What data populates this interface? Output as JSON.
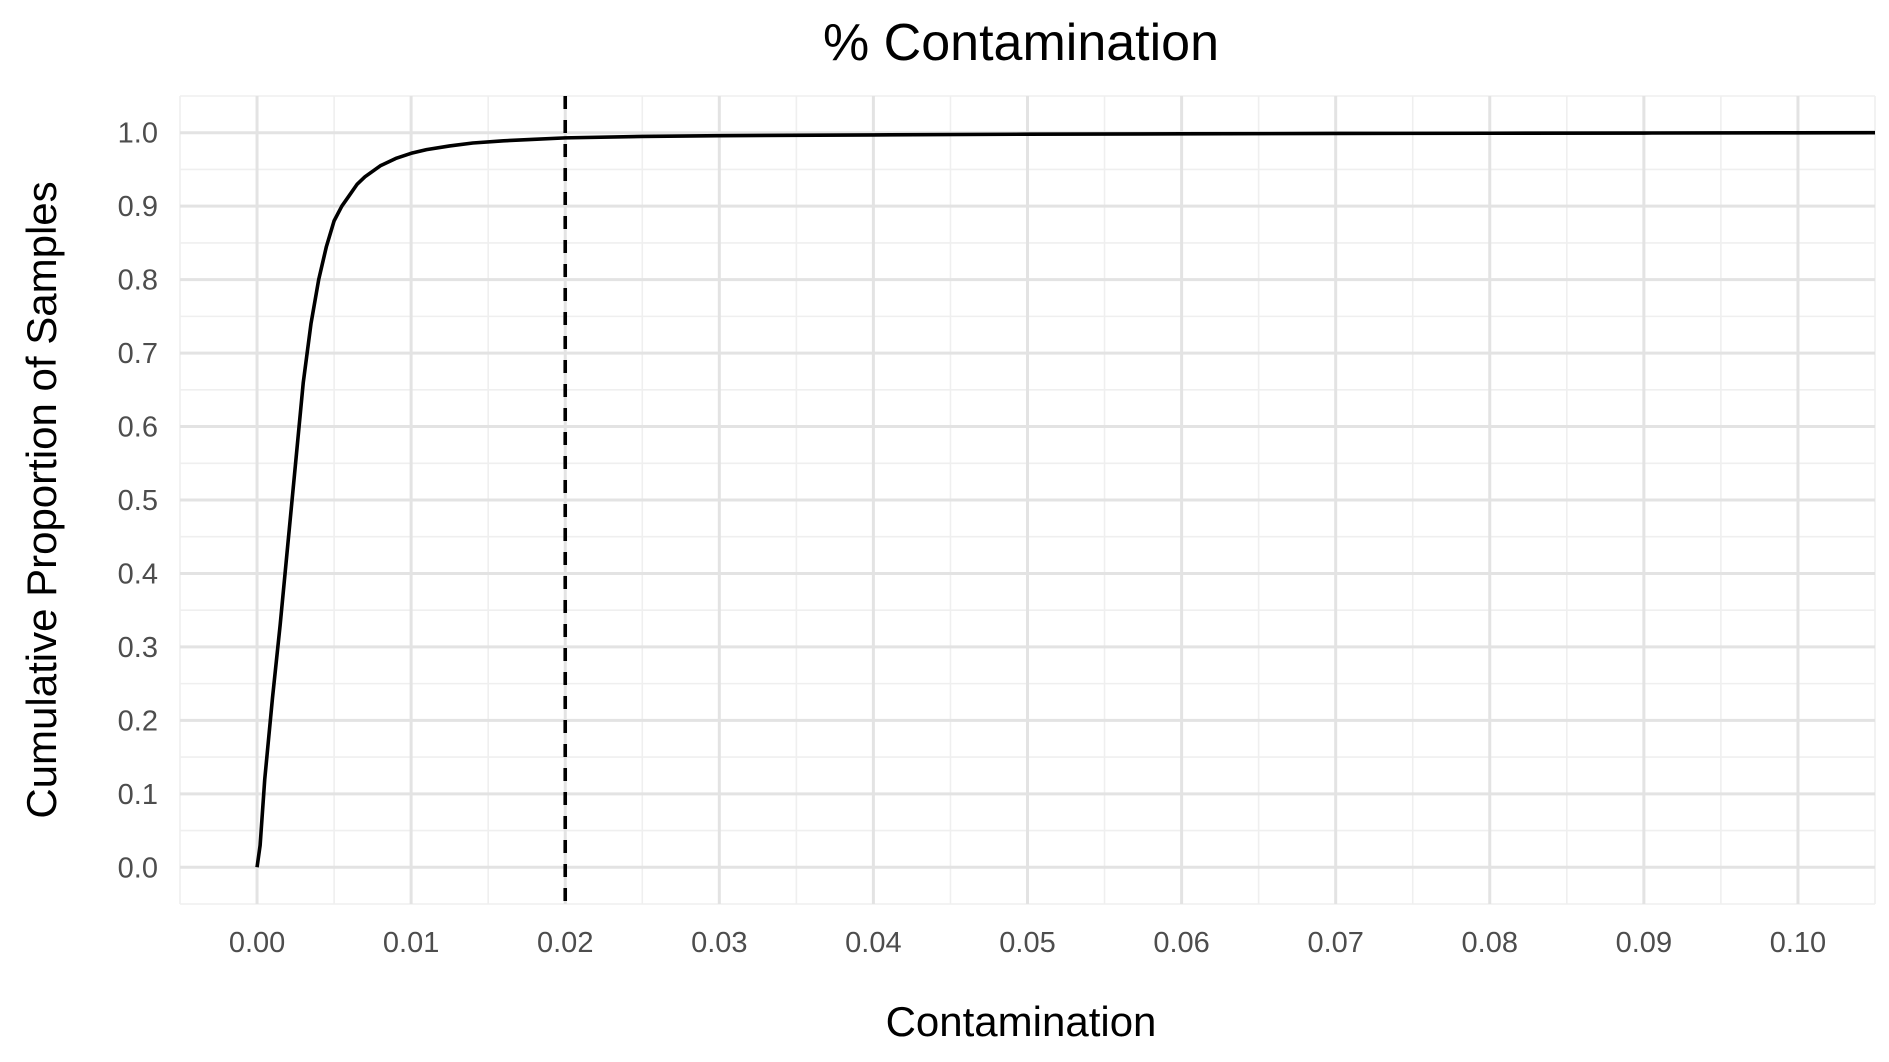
{
  "chart_data": {
    "type": "line",
    "title": "% Contamination",
    "xlabel": "Contamination",
    "ylabel": "Cumulative Proportion of Samples",
    "xlim": [
      -0.005,
      0.105
    ],
    "ylim": [
      -0.05,
      1.05
    ],
    "x_ticks": [
      "0.00",
      "0.01",
      "0.02",
      "0.03",
      "0.04",
      "0.05",
      "0.06",
      "0.07",
      "0.08",
      "0.09",
      "0.10"
    ],
    "y_ticks": [
      "0.0",
      "0.1",
      "0.2",
      "0.3",
      "0.4",
      "0.5",
      "0.6",
      "0.7",
      "0.8",
      "0.9",
      "1.0"
    ],
    "grid": true,
    "legend": "none",
    "series": [
      {
        "line_style": "solid",
        "color": "#000000",
        "x": [
          0.0,
          0.0002,
          0.0005,
          0.001,
          0.0015,
          0.002,
          0.0025,
          0.003,
          0.0035,
          0.004,
          0.0045,
          0.005,
          0.0055,
          0.006,
          0.0065,
          0.007,
          0.008,
          0.009,
          0.01,
          0.011,
          0.0125,
          0.014,
          0.016,
          0.018,
          0.02,
          0.025,
          0.03,
          0.04,
          0.05,
          0.06,
          0.07,
          0.08,
          0.09,
          0.1,
          0.105
        ],
        "y": [
          0.0,
          0.03,
          0.12,
          0.23,
          0.33,
          0.44,
          0.55,
          0.66,
          0.74,
          0.8,
          0.845,
          0.88,
          0.9,
          0.915,
          0.93,
          0.94,
          0.955,
          0.965,
          0.972,
          0.977,
          0.982,
          0.986,
          0.989,
          0.991,
          0.993,
          0.995,
          0.996,
          0.997,
          0.998,
          0.9985,
          0.999,
          0.9993,
          0.9996,
          0.9999,
          1.0
        ]
      }
    ],
    "annotations": [
      {
        "type": "vline",
        "x": 0.02,
        "line_style": "dashed",
        "color": "#000000"
      }
    ]
  }
}
